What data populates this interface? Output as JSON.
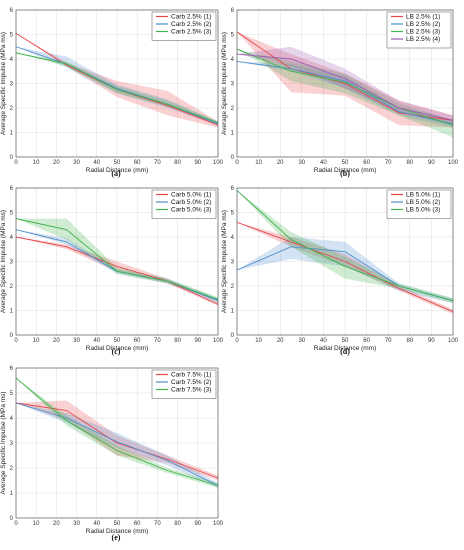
{
  "figure": {
    "charts": [
      {
        "type": "line",
        "panel_label": "(a)",
        "xlabel": "Radial Distance (mm)",
        "ylabel": "Average Specific Impulse (MPa ms)",
        "xlim": [
          0,
          100
        ],
        "ylim": [
          0,
          6
        ],
        "xticks": [
          "0",
          "10",
          "20",
          "30",
          "40",
          "50",
          "60",
          "70",
          "80",
          "90",
          "100"
        ],
        "yticks": [
          "0",
          "1",
          "2",
          "3",
          "4",
          "5",
          "6"
        ],
        "grid": true,
        "legend": "top-right",
        "x": [
          0,
          25,
          50,
          75,
          100
        ],
        "series": [
          {
            "name": "Carb 2.5% (1)",
            "color": "#e8474b",
            "values": [
              5.05,
              3.75,
              2.75,
              2.1,
              1.3
            ],
            "lower": [
              5.05,
              3.7,
              2.45,
              1.7,
              1.2
            ],
            "upper": [
              5.05,
              3.85,
              3.1,
              2.7,
              1.45
            ]
          },
          {
            "name": "Carb 2.5% (2)",
            "color": "#4f8fce",
            "values": [
              4.5,
              3.8,
              2.8,
              2.15,
              1.35
            ],
            "lower": [
              4.5,
              3.65,
              2.6,
              2.0,
              1.3
            ],
            "upper": [
              4.5,
              4.1,
              2.95,
              2.35,
              1.45
            ]
          },
          {
            "name": "Carb 2.5% (3)",
            "color": "#3fb24a",
            "values": [
              4.25,
              3.8,
              2.75,
              2.15,
              1.4
            ],
            "lower": [
              4.25,
              3.7,
              2.6,
              2.05,
              1.35
            ],
            "upper": [
              4.25,
              3.9,
              2.9,
              2.3,
              1.45
            ]
          }
        ]
      },
      {
        "type": "line",
        "panel_label": "(b)",
        "xlabel": "Radial Distance (mm)",
        "ylabel": "Average Specific Impulse (MPa ms)",
        "xlim": [
          0,
          100
        ],
        "ylim": [
          0,
          6
        ],
        "xticks": [
          "0",
          "10",
          "20",
          "30",
          "40",
          "50",
          "60",
          "70",
          "80",
          "90",
          "100"
        ],
        "yticks": [
          "0",
          "1",
          "2",
          "3",
          "4",
          "5",
          "6"
        ],
        "grid": true,
        "legend": "top-right",
        "x": [
          0,
          25,
          50,
          75,
          100
        ],
        "series": [
          {
            "name": "LB 2.5% (1)",
            "color": "#e8474b",
            "values": [
              5.1,
              3.6,
              3.0,
              1.8,
              1.5
            ],
            "lower": [
              5.1,
              2.65,
              2.5,
              1.3,
              1.2
            ],
            "upper": [
              5.1,
              4.2,
              3.4,
              2.3,
              1.7
            ]
          },
          {
            "name": "LB 2.5% (2)",
            "color": "#4f8fce",
            "values": [
              3.9,
              3.6,
              3.1,
              1.85,
              1.35
            ],
            "lower": [
              3.9,
              3.5,
              2.8,
              1.7,
              1.2
            ],
            "upper": [
              3.9,
              3.8,
              3.3,
              2.0,
              1.5
            ]
          },
          {
            "name": "LB 2.5% (3)",
            "color": "#3fb24a",
            "values": [
              4.4,
              3.5,
              3.05,
              2.0,
              1.3
            ],
            "lower": [
              4.4,
              3.1,
              2.6,
              1.7,
              0.8
            ],
            "upper": [
              4.4,
              3.9,
              3.4,
              2.2,
              1.5
            ]
          },
          {
            "name": "LB 2.5% (4)",
            "color": "#9b59b6",
            "values": [
              4.2,
              4.0,
              3.2,
              2.0,
              1.5
            ],
            "lower": [
              4.2,
              3.7,
              2.8,
              1.8,
              1.3
            ],
            "upper": [
              4.2,
              4.5,
              3.6,
              2.3,
              1.7
            ]
          }
        ]
      },
      {
        "type": "line",
        "panel_label": "(c)",
        "xlabel": "Radial Distance (mm)",
        "ylabel": "Average Specific Impulse (MPa ms)",
        "xlim": [
          0,
          100
        ],
        "ylim": [
          0,
          6
        ],
        "xticks": [
          "0",
          "10",
          "20",
          "30",
          "40",
          "50",
          "60",
          "70",
          "80",
          "90",
          "100"
        ],
        "yticks": [
          "0",
          "1",
          "2",
          "3",
          "4",
          "5",
          "6"
        ],
        "grid": true,
        "legend": "top-right",
        "x": [
          0,
          25,
          50,
          75,
          100
        ],
        "series": [
          {
            "name": "Carb 5.0% (1)",
            "color": "#e8474b",
            "values": [
              4.0,
              3.6,
              2.8,
              2.2,
              1.25
            ],
            "lower": [
              4.0,
              3.5,
              2.6,
              2.1,
              1.2
            ],
            "upper": [
              4.0,
              3.7,
              3.0,
              2.3,
              1.35
            ]
          },
          {
            "name": "Carb 5.0% (2)",
            "color": "#4f8fce",
            "values": [
              4.3,
              3.8,
              2.6,
              2.2,
              1.4
            ],
            "lower": [
              4.3,
              3.7,
              2.5,
              2.1,
              1.3
            ],
            "upper": [
              4.3,
              3.95,
              2.7,
              2.3,
              1.5
            ]
          },
          {
            "name": "Carb 5.0% (3)",
            "color": "#3fb24a",
            "values": [
              4.75,
              4.3,
              2.6,
              2.2,
              1.45
            ],
            "lower": [
              4.75,
              3.9,
              2.5,
              2.1,
              1.4
            ],
            "upper": [
              4.75,
              4.75,
              2.75,
              2.3,
              1.55
            ]
          }
        ]
      },
      {
        "type": "line",
        "panel_label": "(d)",
        "xlabel": "Radial Distance (mm)",
        "ylabel": "Average Specific Impulse (MPa ms)",
        "xlim": [
          0,
          100
        ],
        "ylim": [
          0,
          6
        ],
        "xticks": [
          "0",
          "10",
          "20",
          "30",
          "40",
          "50",
          "60",
          "70",
          "80",
          "90",
          "100"
        ],
        "yticks": [
          "0",
          "1",
          "2",
          "3",
          "4",
          "5",
          "6"
        ],
        "grid": true,
        "legend": "top-right",
        "x": [
          0,
          25,
          50,
          75,
          100
        ],
        "series": [
          {
            "name": "LB 5.0% (1)",
            "color": "#e8474b",
            "values": [
              4.6,
              3.8,
              3.0,
              1.9,
              0.95
            ],
            "lower": [
              4.6,
              3.6,
              2.8,
              1.8,
              0.85
            ],
            "upper": [
              4.6,
              4.0,
              3.3,
              2.0,
              1.05
            ]
          },
          {
            "name": "LB 5.0% (2)",
            "color": "#4f8fce",
            "values": [
              2.65,
              3.6,
              3.4,
              2.0,
              1.4
            ],
            "lower": [
              2.65,
              3.1,
              2.8,
              1.8,
              1.3
            ],
            "upper": [
              2.65,
              4.0,
              3.8,
              2.1,
              1.5
            ]
          },
          {
            "name": "LB 5.0% (3)",
            "color": "#3fb24a",
            "values": [
              5.9,
              3.9,
              2.8,
              2.0,
              1.4
            ],
            "lower": [
              5.9,
              3.6,
              2.3,
              1.9,
              1.3
            ],
            "upper": [
              5.9,
              4.2,
              3.2,
              2.1,
              1.5
            ]
          }
        ]
      },
      {
        "type": "line",
        "panel_label": "(e)",
        "xlabel": "Radial Distance (mm)",
        "ylabel": "Average Specific Impulse (MPa ms)",
        "xlim": [
          0,
          100
        ],
        "ylim": [
          0,
          6
        ],
        "xticks": [
          "0",
          "10",
          "20",
          "30",
          "40",
          "50",
          "60",
          "70",
          "80",
          "90",
          "100"
        ],
        "yticks": [
          "0",
          "1",
          "2",
          "3",
          "4",
          "5",
          "6"
        ],
        "grid": true,
        "legend": "top-right",
        "x": [
          0,
          25,
          50,
          75,
          100
        ],
        "series": [
          {
            "name": "Carb 7.5% (1)",
            "color": "#e8474b",
            "values": [
              4.6,
              4.3,
              3.0,
              2.35,
              1.6
            ],
            "lower": [
              4.6,
              3.9,
              2.5,
              2.2,
              1.5
            ],
            "upper": [
              4.6,
              4.7,
              3.3,
              2.5,
              1.7
            ]
          },
          {
            "name": "Carb 7.5% (2)",
            "color": "#4f8fce",
            "values": [
              4.6,
              4.0,
              3.05,
              2.3,
              1.3
            ],
            "lower": [
              4.6,
              3.8,
              2.8,
              2.1,
              1.2
            ],
            "upper": [
              4.6,
              4.2,
              3.4,
              2.5,
              1.4
            ]
          },
          {
            "name": "Carb 7.5% (3)",
            "color": "#3fb24a",
            "values": [
              5.6,
              3.9,
              2.7,
              1.9,
              1.3
            ],
            "lower": [
              5.6,
              3.7,
              2.5,
              1.8,
              1.2
            ],
            "upper": [
              5.6,
              4.1,
              2.9,
              2.0,
              1.4
            ]
          }
        ]
      }
    ]
  }
}
